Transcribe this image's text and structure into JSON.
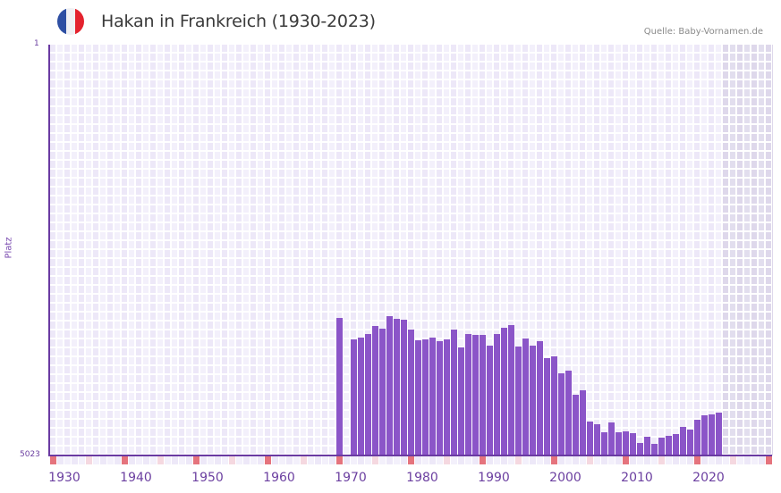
{
  "header": {
    "title": "Hakan in Frankreich (1930-2023)",
    "source": "Quelle: Baby-Vornamen.de",
    "flag": {
      "name": "france-flag-icon",
      "colors": [
        "#2e4fa3",
        "#f1f1f4",
        "#e4232e"
      ]
    }
  },
  "colors": {
    "bar": "#8b55c8",
    "axis": "#6a3aa2",
    "grid_a": "#ede8f8",
    "grid_b": "#f3f0fb",
    "marker_decade": "#e5737d",
    "marker_half": "#f5d8e0"
  },
  "chart_data": {
    "type": "bar",
    "title": "Hakan in Frankreich (1930-2023)",
    "xlabel": "",
    "ylabel": "Platz",
    "y_inverted": true,
    "ylim": [
      5023,
      1
    ],
    "y_ticks": [
      "1",
      "5023"
    ],
    "x_ticks": [
      "1930",
      "1940",
      "1950",
      "1960",
      "1970",
      "1980",
      "1990",
      "2000",
      "2010",
      "2020"
    ],
    "grid": true,
    "x_range": [
      1930,
      2030
    ],
    "categories": [
      1970,
      1972,
      1973,
      1974,
      1975,
      1976,
      1977,
      1978,
      1979,
      1980,
      1981,
      1982,
      1983,
      1984,
      1985,
      1986,
      1987,
      1988,
      1989,
      1990,
      1991,
      1992,
      1993,
      1994,
      1995,
      1996,
      1997,
      1998,
      1999,
      2000,
      2001,
      2002,
      2003,
      2004,
      2005,
      2006,
      2007,
      2008,
      2009,
      2010,
      2011,
      2012,
      2013,
      2014,
      2015,
      2016,
      2017,
      2018,
      2019,
      2020,
      2021,
      2022,
      2023
    ],
    "values": [
      3342,
      3604,
      3582,
      3538,
      3440,
      3473,
      3320,
      3353,
      3364,
      3484,
      3615,
      3604,
      3582,
      3626,
      3604,
      3484,
      3702,
      3538,
      3549,
      3549,
      3680,
      3538,
      3462,
      3429,
      3691,
      3593,
      3680,
      3626,
      3833,
      3811,
      4019,
      3986,
      4281,
      4226,
      4608,
      4641,
      4739,
      4619,
      4739,
      4728,
      4750,
      4870,
      4794,
      4881,
      4804,
      4783,
      4761,
      4674,
      4706,
      4586,
      4532,
      4521,
      4499
    ]
  }
}
